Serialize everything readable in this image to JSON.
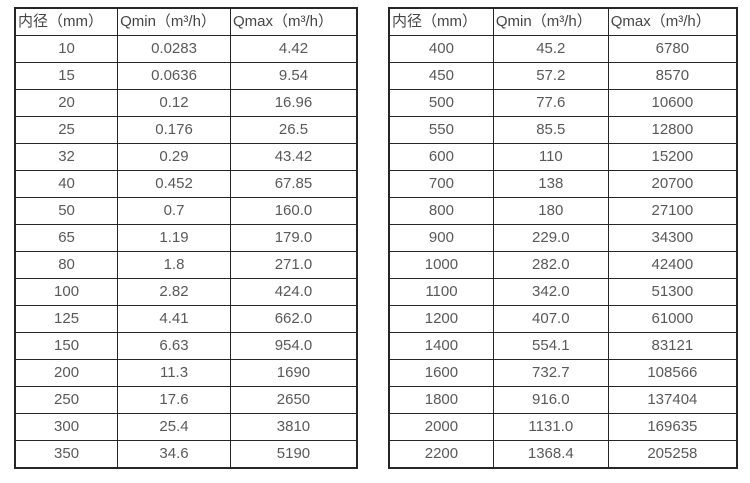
{
  "colors": {
    "border": "#262626",
    "header_text": "#454545",
    "cell_text": "#595959",
    "background": "#ffffff"
  },
  "tables": [
    {
      "name": "flow-table-small-diameters",
      "headers": [
        "内径（mm）",
        "Qmin（m³/h）",
        "Qmax（m³/h）"
      ],
      "rows": [
        [
          "10",
          "0.0283",
          "4.42"
        ],
        [
          "15",
          "0.0636",
          "9.54"
        ],
        [
          "20",
          "0.12",
          "16.96"
        ],
        [
          "25",
          "0.176",
          "26.5"
        ],
        [
          "32",
          "0.29",
          "43.42"
        ],
        [
          "40",
          "0.452",
          "67.85"
        ],
        [
          "50",
          "0.7",
          "160.0"
        ],
        [
          "65",
          "1.19",
          "179.0"
        ],
        [
          "80",
          "1.8",
          "271.0"
        ],
        [
          "100",
          "2.82",
          "424.0"
        ],
        [
          "125",
          "4.41",
          "662.0"
        ],
        [
          "150",
          "6.63",
          "954.0"
        ],
        [
          "200",
          "11.3",
          "1690"
        ],
        [
          "250",
          "17.6",
          "2650"
        ],
        [
          "300",
          "25.4",
          "3810"
        ],
        [
          "350",
          "34.6",
          "5190"
        ]
      ]
    },
    {
      "name": "flow-table-large-diameters",
      "headers": [
        "内径（mm）",
        "Qmin（m³/h）",
        "Qmax（m³/h）"
      ],
      "rows": [
        [
          "400",
          "45.2",
          "6780"
        ],
        [
          "450",
          "57.2",
          "8570"
        ],
        [
          "500",
          "77.6",
          "10600"
        ],
        [
          "550",
          "85.5",
          "12800"
        ],
        [
          "600",
          "110",
          "15200"
        ],
        [
          "700",
          "138",
          "20700"
        ],
        [
          "800",
          "180",
          "27100"
        ],
        [
          "900",
          "229.0",
          "34300"
        ],
        [
          "1000",
          "282.0",
          "42400"
        ],
        [
          "1100",
          "342.0",
          "51300"
        ],
        [
          "1200",
          "407.0",
          "61000"
        ],
        [
          "1400",
          "554.1",
          "83121"
        ],
        [
          "1600",
          "732.7",
          "108566"
        ],
        [
          "1800",
          "916.0",
          "137404"
        ],
        [
          "2000",
          "1131.0",
          "169635"
        ],
        [
          "2200",
          "1368.4",
          "205258"
        ]
      ]
    }
  ]
}
